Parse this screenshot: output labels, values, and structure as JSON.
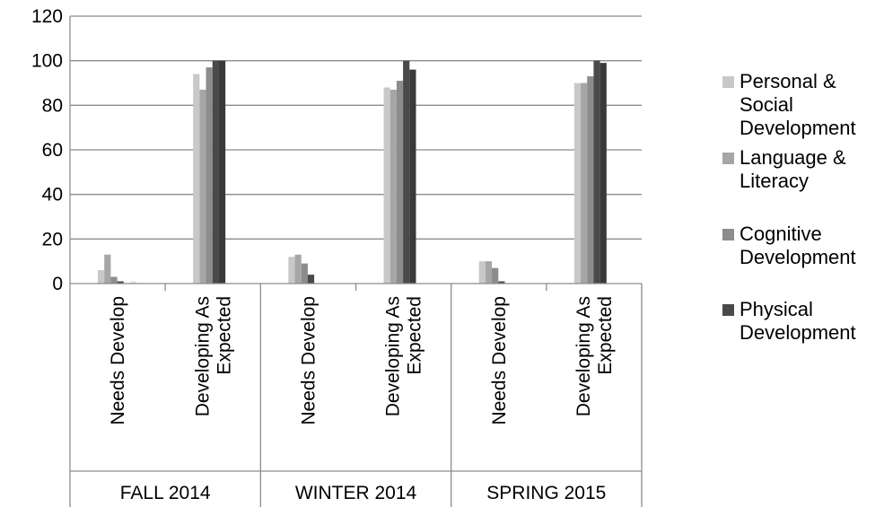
{
  "chart_data": {
    "type": "bar",
    "title": "",
    "xlabel": "",
    "ylabel": "",
    "ylim": [
      0,
      120
    ],
    "y_ticks": [
      "0",
      "20",
      "40",
      "60",
      "80",
      "100",
      "120"
    ],
    "grid": true,
    "legend_position": "right",
    "groups": [
      {
        "label": "FALL 2014",
        "categories": [
          "Needs Develop",
          "Developing As Expected"
        ]
      },
      {
        "label": "WINTER 2014",
        "categories": [
          "Needs Develop",
          "Developing As Expected"
        ]
      },
      {
        "label": "SPRING 2015",
        "categories": [
          "Needs Develop",
          "Developing As Expected"
        ]
      }
    ],
    "category_label_lines": {
      "Needs Develop": [
        "Needs Develop"
      ],
      "Developing As Expected": [
        "Developing As",
        "Expected"
      ]
    },
    "series": [
      {
        "name": "Personal & Social Development",
        "legend_lines": [
          "Personal  &",
          "Social",
          "Development"
        ],
        "color": "#c8c8c8",
        "values": [
          6,
          94,
          12,
          88,
          10,
          90
        ]
      },
      {
        "name": "Language & Literacy",
        "legend_lines": [
          "Language &",
          "Literacy"
        ],
        "color": "#a6a6a6",
        "values": [
          13,
          87,
          13,
          87,
          10,
          90
        ]
      },
      {
        "name": "Cognitive Development",
        "legend_lines": [
          "Cognitive",
          "Development"
        ],
        "color": "#8c8c8c",
        "values": [
          3,
          97,
          9,
          91,
          7,
          93
        ]
      },
      {
        "name": "Physical Development",
        "legend_lines": [
          "Physical",
          "Development"
        ],
        "color": "#4a4a4a",
        "values": [
          1,
          100,
          4,
          100,
          1,
          100
        ]
      },
      {
        "name": "",
        "legend_lines": [],
        "color": "#3a3a3a",
        "values": [
          0,
          100,
          0,
          96,
          0,
          99
        ]
      },
      {
        "name": "",
        "legend_lines": [],
        "color": "#e6e6e6",
        "values": [
          1,
          0,
          0,
          0,
          0,
          0
        ]
      }
    ]
  }
}
